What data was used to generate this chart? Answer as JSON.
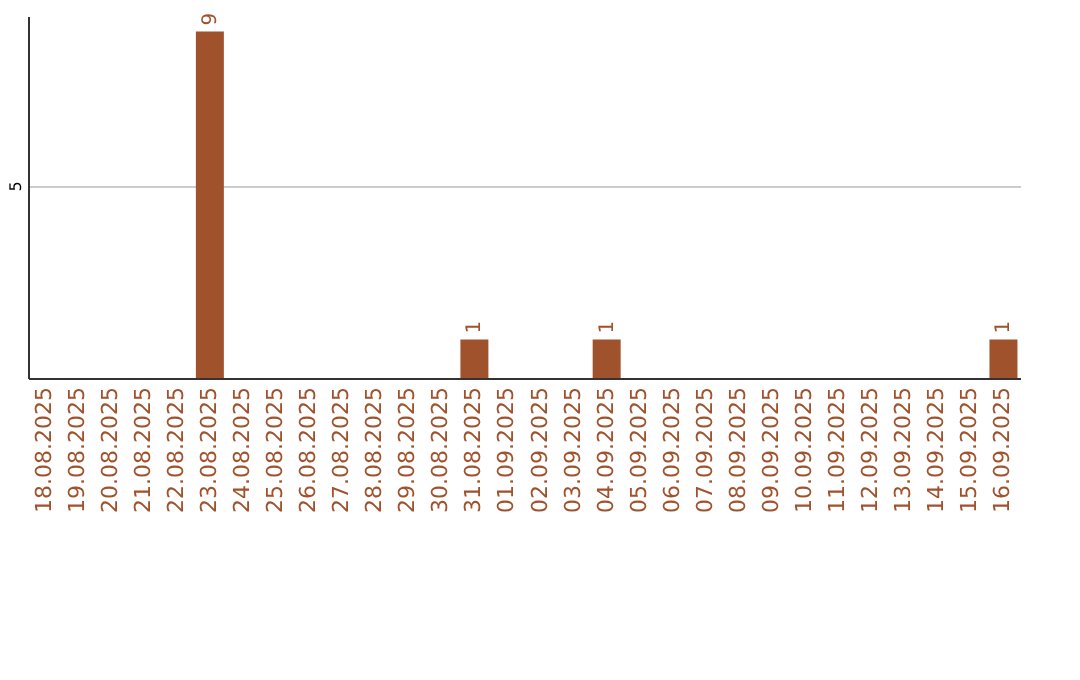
{
  "chart_data": {
    "type": "bar",
    "categories": [
      "18.08.2025",
      "19.08.2025",
      "20.08.2025",
      "21.08.2025",
      "22.08.2025",
      "23.08.2025",
      "24.08.2025",
      "25.08.2025",
      "26.08.2025",
      "27.08.2025",
      "28.08.2025",
      "29.08.2025",
      "30.08.2025",
      "31.08.2025",
      "01.09.2025",
      "02.09.2025",
      "03.09.2025",
      "04.09.2025",
      "05.09.2025",
      "06.09.2025",
      "07.09.2025",
      "08.09.2025",
      "09.09.2025",
      "10.09.2025",
      "11.09.2025",
      "12.09.2025",
      "13.09.2025",
      "14.09.2025",
      "15.09.2025",
      "16.09.2025"
    ],
    "values": [
      0,
      0,
      0,
      0,
      0,
      9,
      0,
      0,
      0,
      0,
      0,
      0,
      0,
      1,
      0,
      0,
      0,
      1,
      0,
      0,
      0,
      0,
      0,
      0,
      0,
      0,
      0,
      0,
      0,
      1
    ],
    "value_labels": [
      null,
      null,
      null,
      null,
      null,
      "9",
      null,
      null,
      null,
      null,
      null,
      null,
      null,
      "1",
      null,
      null,
      null,
      "1",
      null,
      null,
      null,
      null,
      null,
      null,
      null,
      null,
      null,
      null,
      null,
      "1"
    ],
    "color": "#a0522d",
    "ylim": [
      0,
      9.4
    ],
    "yticks": [
      5
    ],
    "grid": "y"
  }
}
